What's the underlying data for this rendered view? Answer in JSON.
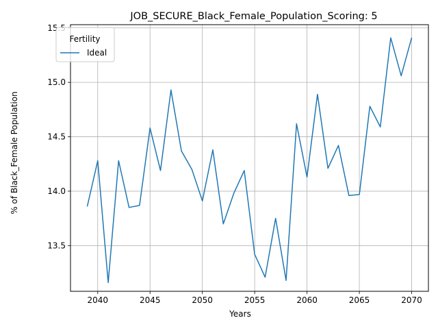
{
  "chart_data": {
    "type": "line",
    "title": "JOB_SECURE_Black_Female_Population_Scoring: 5",
    "xlabel": "Years",
    "ylabel": "% of Black_Female Population",
    "xlim": [
      2037.4,
      2071.6
    ],
    "ylim": [
      13.08,
      15.53
    ],
    "x_ticks": [
      2040,
      2045,
      2050,
      2055,
      2060,
      2065,
      2070
    ],
    "y_ticks": [
      13.5,
      14.0,
      14.5,
      15.0,
      15.5
    ],
    "x_tick_labels": [
      "2040",
      "2045",
      "2050",
      "2055",
      "2060",
      "2065",
      "2070"
    ],
    "y_tick_labels": [
      "13.5",
      "14.0",
      "14.5",
      "15.0",
      "15.5"
    ],
    "grid": true,
    "legend": {
      "title": "Fertility",
      "placement": "top-left"
    },
    "series": [
      {
        "name": "Ideal",
        "color": "#1f77b4",
        "x": [
          2039,
          2040,
          2041,
          2042,
          2043,
          2044,
          2045,
          2046,
          2047,
          2048,
          2049,
          2050,
          2051,
          2052,
          2053,
          2054,
          2055,
          2056,
          2057,
          2058,
          2059,
          2060,
          2061,
          2062,
          2063,
          2064,
          2065,
          2066,
          2067,
          2068,
          2069,
          2070
        ],
        "y": [
          13.86,
          14.28,
          13.16,
          14.28,
          13.85,
          13.87,
          14.58,
          14.19,
          14.93,
          14.37,
          14.2,
          13.91,
          14.38,
          13.7,
          13.98,
          14.19,
          13.42,
          13.21,
          13.75,
          13.18,
          14.62,
          14.13,
          14.89,
          14.21,
          14.42,
          13.96,
          13.97,
          14.78,
          14.59,
          15.41,
          15.06,
          15.41
        ]
      }
    ]
  }
}
